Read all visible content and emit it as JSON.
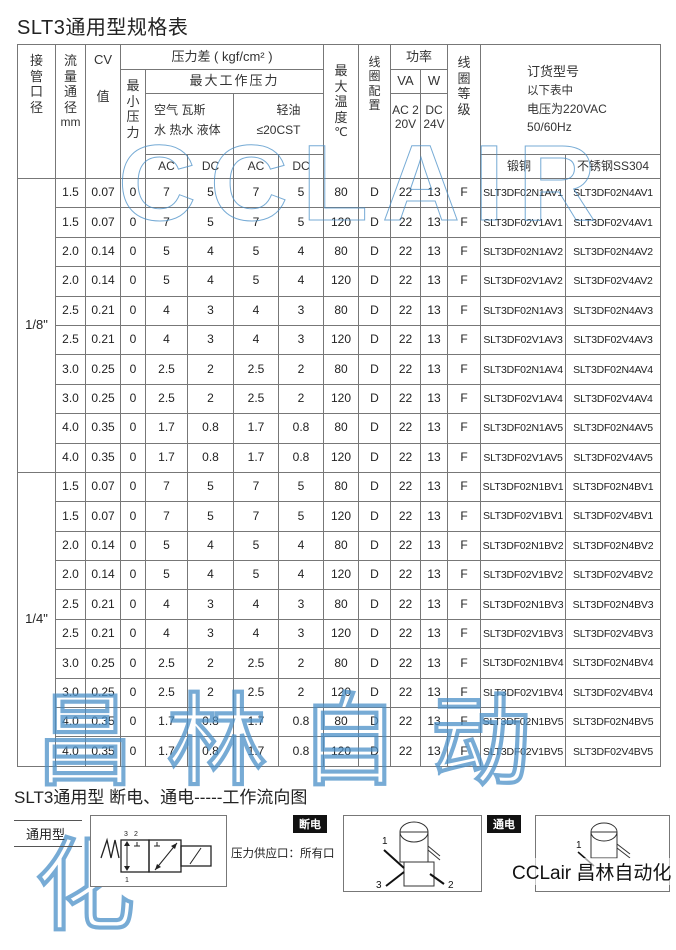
{
  "title": "SLT3通用型规格表",
  "header": {
    "port_size": "接管口径",
    "flow_dia": "流量通径",
    "flow_unit": "mm",
    "cv": "CV",
    "cv_value": "值",
    "pressure_diff": "压力差 ( kgf/cm² )",
    "min_pressure": "最小压力",
    "max_working_pressure": "最大工作压力",
    "media_group1_line1": "空气 瓦斯",
    "media_group1_line2": "水 热水 液体",
    "media_group2_line1": "轻油",
    "media_group2_line2": "≤20CST",
    "ac": "AC",
    "dc": "DC",
    "max_temp": "最大温度",
    "temp_unit": "℃",
    "coil_config": "线圈配置",
    "power": "功率",
    "va": "VA",
    "w": "W",
    "ac_220": "AC 220V",
    "dc_24": "DC 24V",
    "coil_grade": "线圈等级",
    "order_title": "订货型号",
    "order_note1": "以下表中",
    "order_note2": "电压为220VAC",
    "order_note3": "50/60Hz",
    "forged_brass": "锻铜",
    "stainless": "不锈钢SS304"
  },
  "groups": [
    {
      "port": "1/8\"",
      "rows": [
        [
          "1.5",
          "0.07",
          "0",
          "7",
          "5",
          "7",
          "5",
          "80",
          "D",
          "22",
          "13",
          "F",
          "SLT3DF02N1AV1",
          "SLT3DF02N4AV1"
        ],
        [
          "1.5",
          "0.07",
          "0",
          "7",
          "5",
          "7",
          "5",
          "120",
          "D",
          "22",
          "13",
          "F",
          "SLT3DF02V1AV1",
          "SLT3DF02V4AV1"
        ],
        [
          "2.0",
          "0.14",
          "0",
          "5",
          "4",
          "5",
          "4",
          "80",
          "D",
          "22",
          "13",
          "F",
          "SLT3DF02N1AV2",
          "SLT3DF02N4AV2"
        ],
        [
          "2.0",
          "0.14",
          "0",
          "5",
          "4",
          "5",
          "4",
          "120",
          "D",
          "22",
          "13",
          "F",
          "SLT3DF02V1AV2",
          "SLT3DF02V4AV2"
        ],
        [
          "2.5",
          "0.21",
          "0",
          "4",
          "3",
          "4",
          "3",
          "80",
          "D",
          "22",
          "13",
          "F",
          "SLT3DF02N1AV3",
          "SLT3DF02N4AV3"
        ],
        [
          "2.5",
          "0.21",
          "0",
          "4",
          "3",
          "4",
          "3",
          "120",
          "D",
          "22",
          "13",
          "F",
          "SLT3DF02V1AV3",
          "SLT3DF02V4AV3"
        ],
        [
          "3.0",
          "0.25",
          "0",
          "2.5",
          "2",
          "2.5",
          "2",
          "80",
          "D",
          "22",
          "13",
          "F",
          "SLT3DF02N1AV4",
          "SLT3DF02N4AV4"
        ],
        [
          "3.0",
          "0.25",
          "0",
          "2.5",
          "2",
          "2.5",
          "2",
          "120",
          "D",
          "22",
          "13",
          "F",
          "SLT3DF02V1AV4",
          "SLT3DF02V4AV4"
        ],
        [
          "4.0",
          "0.35",
          "0",
          "1.7",
          "0.8",
          "1.7",
          "0.8",
          "80",
          "D",
          "22",
          "13",
          "F",
          "SLT3DF02N1AV5",
          "SLT3DF02N4AV5"
        ],
        [
          "4.0",
          "0.35",
          "0",
          "1.7",
          "0.8",
          "1.7",
          "0.8",
          "120",
          "D",
          "22",
          "13",
          "F",
          "SLT3DF02V1AV5",
          "SLT3DF02V4AV5"
        ]
      ]
    },
    {
      "port": "1/4\"",
      "rows": [
        [
          "1.5",
          "0.07",
          "0",
          "7",
          "5",
          "7",
          "5",
          "80",
          "D",
          "22",
          "13",
          "F",
          "SLT3DF02N1BV1",
          "SLT3DF02N4BV1"
        ],
        [
          "1.5",
          "0.07",
          "0",
          "7",
          "5",
          "7",
          "5",
          "120",
          "D",
          "22",
          "13",
          "F",
          "SLT3DF02V1BV1",
          "SLT3DF02V4BV1"
        ],
        [
          "2.0",
          "0.14",
          "0",
          "5",
          "4",
          "5",
          "4",
          "80",
          "D",
          "22",
          "13",
          "F",
          "SLT3DF02N1BV2",
          "SLT3DF02N4BV2"
        ],
        [
          "2.0",
          "0.14",
          "0",
          "5",
          "4",
          "5",
          "4",
          "120",
          "D",
          "22",
          "13",
          "F",
          "SLT3DF02V1BV2",
          "SLT3DF02V4BV2"
        ],
        [
          "2.5",
          "0.21",
          "0",
          "4",
          "3",
          "4",
          "3",
          "80",
          "D",
          "22",
          "13",
          "F",
          "SLT3DF02N1BV3",
          "SLT3DF02N4BV3"
        ],
        [
          "2.5",
          "0.21",
          "0",
          "4",
          "3",
          "4",
          "3",
          "120",
          "D",
          "22",
          "13",
          "F",
          "SLT3DF02V1BV3",
          "SLT3DF02V4BV3"
        ],
        [
          "3.0",
          "0.25",
          "0",
          "2.5",
          "2",
          "2.5",
          "2",
          "80",
          "D",
          "22",
          "13",
          "F",
          "SLT3DF02N1BV4",
          "SLT3DF02N4BV4"
        ],
        [
          "3.0",
          "0.25",
          "0",
          "2.5",
          "2",
          "2.5",
          "2",
          "120",
          "D",
          "22",
          "13",
          "F",
          "SLT3DF02V1BV4",
          "SLT3DF02V4BV4"
        ],
        [
          "4.0",
          "0.35",
          "0",
          "1.7",
          "0.8",
          "1.7",
          "0.8",
          "80",
          "D",
          "22",
          "13",
          "F",
          "SLT3DF02N1BV5",
          "SLT3DF02N4BV5"
        ],
        [
          "4.0",
          "0.35",
          "0",
          "1.7",
          "0.8",
          "1.7",
          "0.8",
          "120",
          "D",
          "22",
          "13",
          "F",
          "SLT3DF02V1BV5",
          "SLT3DF02V4BV5"
        ]
      ]
    }
  ],
  "flow": {
    "title": "SLT3通用型 断电、通电-----工作流向图",
    "type_label": "通用型",
    "port_labels": [
      "3",
      "2",
      "1"
    ],
    "supply_text": "压力供应口：所有口",
    "off_tag": "断电",
    "on_tag": "通电",
    "off_ports": [
      "1",
      "3",
      "2"
    ],
    "on_ports": [
      "1"
    ]
  },
  "watermarks": {
    "brand_latin": "CCLair",
    "brand_cn": "昌林自动化",
    "footer_logo": "CCLair 昌林自动化",
    "color": "#4a90c8"
  }
}
